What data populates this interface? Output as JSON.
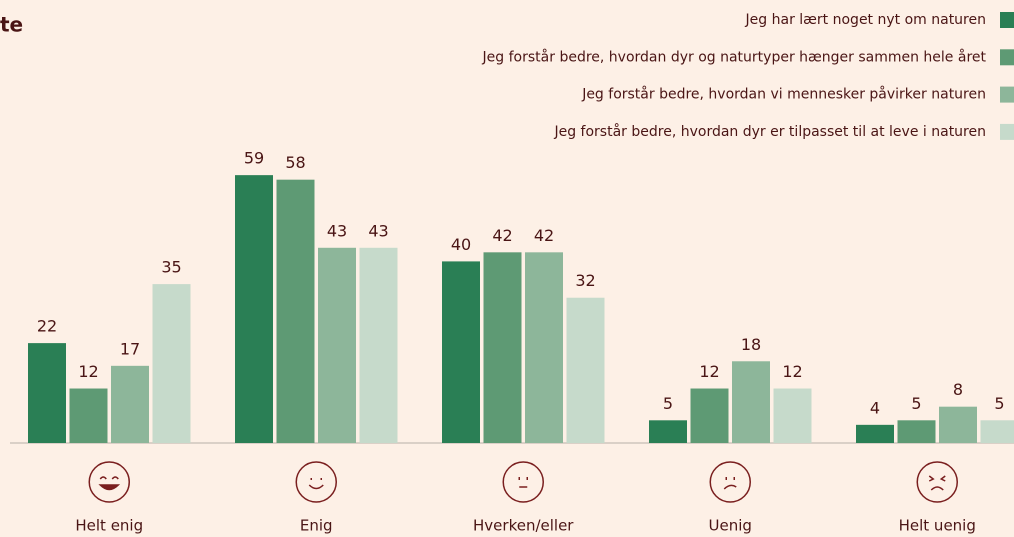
{
  "chart_data": {
    "type": "bar",
    "title": "te",
    "categories": [
      "Helt enig",
      "Enig",
      "Hverken/eller",
      "Uenig",
      "Helt uenig"
    ],
    "series": [
      {
        "name": "Jeg har lært noget nyt om naturen",
        "color": "#2a7f55",
        "values": [
          22,
          59,
          40,
          5,
          4
        ]
      },
      {
        "name": "Jeg forstår bedre, hvordan dyr og naturtyper hænger sammen hele året",
        "color": "#5e9a74",
        "values": [
          12,
          58,
          42,
          12,
          5
        ]
      },
      {
        "name": "Jeg forstår bedre, hvordan vi mennesker påvirker naturen",
        "color": "#8db69a",
        "values": [
          17,
          43,
          42,
          18,
          8
        ]
      },
      {
        "name": "Jeg forstår bedre, hvordan dyr er tilpasset til at leve i naturen",
        "color": "#c6dacb",
        "values": [
          35,
          43,
          32,
          12,
          5
        ]
      }
    ],
    "legend": "top-right"
  }
}
